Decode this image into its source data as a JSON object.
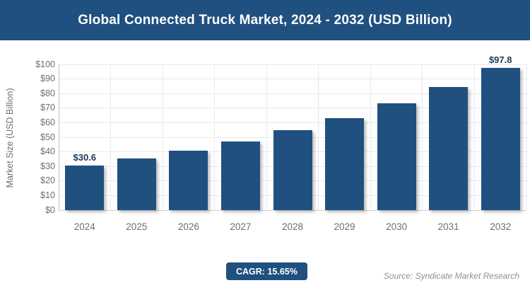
{
  "header": {
    "title": "Global Connected Truck Market, 2024 - 2032 (USD Billion)"
  },
  "chart_data": {
    "type": "bar",
    "title": "Global Connected Truck Market, 2024 - 2032 (USD Billion)",
    "categories": [
      "2024",
      "2025",
      "2026",
      "2027",
      "2028",
      "2029",
      "2030",
      "2031",
      "2032"
    ],
    "values": [
      30.6,
      35.4,
      40.9,
      47.3,
      54.7,
      63.3,
      73.2,
      84.6,
      97.8
    ],
    "data_labels": [
      "$30.6",
      null,
      null,
      null,
      null,
      null,
      null,
      null,
      "$97.8"
    ],
    "xlabel": "",
    "ylabel": "Market Size (USD Billion)",
    "ylim": [
      0,
      100
    ],
    "ytick_step": 10,
    "ytick_prefix": "$",
    "grid": true,
    "legend": "none",
    "bar_color": "#1f5080"
  },
  "footer": {
    "cagr_label": "CAGR: 15.65%",
    "source": "Source: Syndicate Market Research"
  },
  "colors": {
    "accent_navy": "#1f5080",
    "tick_gray": "#6e6e6e",
    "gridline": "#e9e9e9",
    "data_label_navy": "#1e3a56"
  }
}
